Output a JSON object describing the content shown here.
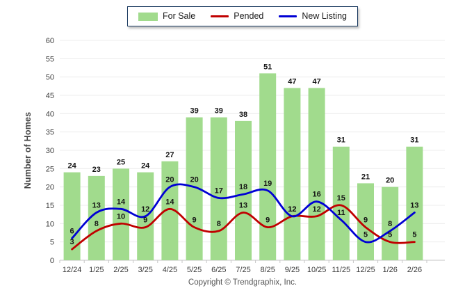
{
  "footer": {
    "copyright": "Copyright © Trendgraphix, Inc."
  },
  "chart_data": {
    "type": "combo",
    "title": "",
    "categories": [
      "12/24",
      "1/25",
      "2/25",
      "3/25",
      "4/25",
      "5/25",
      "6/25",
      "7/25",
      "8/25",
      "9/25",
      "10/25",
      "11/25",
      "12/25",
      "1/26",
      "2/26"
    ],
    "series": [
      {
        "name": "For Sale",
        "type": "bar",
        "color": "#A1DB8D",
        "values": [
          24,
          23,
          25,
          24,
          27,
          39,
          39,
          38,
          51,
          47,
          47,
          31,
          21,
          20,
          31
        ]
      },
      {
        "name": "Pended",
        "type": "line",
        "color": "#C00000",
        "values": [
          3,
          8,
          10,
          9,
          14,
          9,
          8,
          13,
          9,
          12,
          12,
          15,
          9,
          5,
          5
        ]
      },
      {
        "name": "New Listing",
        "type": "line",
        "color": "#0000D4",
        "values": [
          6,
          13,
          14,
          12,
          20,
          20,
          17,
          18,
          19,
          12,
          16,
          11,
          5,
          8,
          13
        ]
      }
    ],
    "xlabel": "",
    "ylabel": "Number of Homes",
    "ylim": [
      0,
      60
    ],
    "ytick_step": 5,
    "grid": true,
    "legend_position": "top"
  }
}
